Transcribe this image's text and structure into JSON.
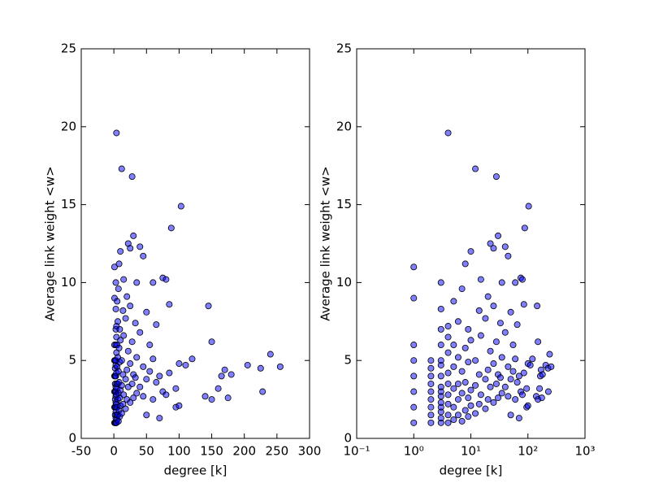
{
  "chart_data": [
    {
      "type": "scatter",
      "xlabel": "degree [k]",
      "ylabel": "Average link weight <w>",
      "color": "#0000ff",
      "xscale": "linear",
      "xlim": [
        -50,
        300
      ],
      "xticks": [
        -50,
        0,
        50,
        100,
        150,
        200,
        250,
        300
      ],
      "ylim": [
        0,
        25
      ],
      "yticks": [
        0,
        5,
        10,
        15,
        20,
        25
      ],
      "x": [
        1,
        1,
        1,
        1,
        1,
        1,
        1,
        1,
        2,
        2,
        2,
        2,
        2,
        2,
        2,
        2,
        2,
        3,
        3,
        3,
        3,
        3,
        3,
        3,
        3,
        3,
        3,
        3,
        3,
        3,
        3,
        3,
        4,
        4,
        4,
        4,
        4,
        4,
        4,
        4,
        4,
        4,
        5,
        5,
        5,
        5,
        5,
        5,
        6,
        6,
        6,
        6,
        6,
        7,
        7,
        7,
        7,
        8,
        8,
        8,
        8,
        9,
        9,
        9,
        9,
        10,
        10,
        10,
        10,
        12,
        12,
        12,
        12,
        14,
        14,
        14,
        15,
        15,
        15,
        18,
        18,
        18,
        20,
        20,
        20,
        22,
        22,
        22,
        25,
        25,
        25,
        25,
        28,
        28,
        28,
        30,
        30,
        30,
        33,
        33,
        35,
        35,
        35,
        40,
        40,
        40,
        45,
        45,
        45,
        50,
        50,
        50,
        55,
        55,
        60,
        60,
        60,
        65,
        65,
        70,
        70,
        75,
        75,
        80,
        80,
        85,
        85,
        88,
        95,
        95,
        100,
        100,
        103,
        110,
        120,
        140,
        145,
        150,
        150,
        160,
        165,
        170,
        175,
        180,
        205,
        225,
        228,
        240,
        255
      ],
      "values": [
        1,
        2,
        3,
        4,
        5,
        6,
        9,
        11,
        1,
        1.5,
        2,
        2.5,
        3,
        3.5,
        4,
        4.5,
        5,
        1,
        1.3,
        1.7,
        2,
        2.3,
        2.7,
        3,
        3.3,
        4,
        4.7,
        5,
        6,
        7,
        8.3,
        10,
        1,
        1.5,
        2.2,
        2.8,
        3.5,
        4.2,
        5.5,
        6.5,
        7.2,
        19.6,
        1.2,
        2,
        3.2,
        4.6,
        6,
        8.8,
        1.5,
        2.5,
        3.5,
        5.2,
        7.5,
        1.1,
        2.9,
        4.3,
        9.6,
        1.8,
        3.6,
        5.8,
        11.2,
        1.4,
        2.6,
        4.9,
        7,
        2.1,
        3.1,
        6.3,
        12,
        1.6,
        3.4,
        5,
        17.3,
        2.2,
        4.1,
        8.2,
        2.8,
        6.6,
        10.2,
        1.9,
        3.8,
        7.7,
        2.5,
        4.4,
        9.1,
        3.3,
        5.6,
        12.5,
        2.3,
        4.8,
        8.5,
        12.2,
        3.5,
        6.2,
        16.8,
        2.6,
        4.1,
        13,
        3.9,
        7.4,
        2.9,
        5.2,
        10,
        3.3,
        6.8,
        12.3,
        2.7,
        4.6,
        11.7,
        1.5,
        3.8,
        8.1,
        4.3,
        6,
        2.5,
        5.1,
        10,
        3.6,
        7.3,
        1.3,
        4,
        3,
        10.3,
        2.8,
        10.2,
        4.2,
        8.6,
        13.5,
        2,
        3.2,
        2.1,
        4.8,
        14.9,
        4.7,
        5.1,
        2.7,
        8.5,
        2.5,
        6.2,
        3.2,
        4,
        4.4,
        2.6,
        4.1,
        4.7,
        4.5,
        3,
        5.4,
        4.6
      ]
    },
    {
      "type": "scatter",
      "xlabel": "degree [k]",
      "ylabel": "Average link weight <w>",
      "color": "#0000ff",
      "xscale": "log",
      "xlim": [
        0.1,
        1000
      ],
      "xticks": [
        {
          "value": 0.1,
          "label": "10⁻¹"
        },
        {
          "value": 1,
          "label": "10⁰"
        },
        {
          "value": 10,
          "label": "10¹"
        },
        {
          "value": 100,
          "label": "10²"
        },
        {
          "value": 1000,
          "label": "10³"
        }
      ],
      "ylim": [
        0,
        25
      ],
      "yticks": [
        0,
        5,
        10,
        15,
        20,
        25
      ],
      "x": [
        1,
        1,
        1,
        1,
        1,
        1,
        1,
        1,
        2,
        2,
        2,
        2,
        2,
        2,
        2,
        2,
        2,
        3,
        3,
        3,
        3,
        3,
        3,
        3,
        3,
        3,
        3,
        3,
        3,
        3,
        3,
        3,
        4,
        4,
        4,
        4,
        4,
        4,
        4,
        4,
        4,
        4,
        5,
        5,
        5,
        5,
        5,
        5,
        6,
        6,
        6,
        6,
        6,
        7,
        7,
        7,
        7,
        8,
        8,
        8,
        8,
        9,
        9,
        9,
        9,
        10,
        10,
        10,
        10,
        12,
        12,
        12,
        12,
        14,
        14,
        14,
        15,
        15,
        15,
        18,
        18,
        18,
        20,
        20,
        20,
        22,
        22,
        22,
        25,
        25,
        25,
        25,
        28,
        28,
        28,
        30,
        30,
        30,
        33,
        33,
        35,
        35,
        35,
        40,
        40,
        40,
        45,
        45,
        45,
        50,
        50,
        50,
        55,
        55,
        60,
        60,
        60,
        65,
        65,
        70,
        70,
        75,
        75,
        80,
        80,
        85,
        85,
        88,
        95,
        95,
        100,
        100,
        103,
        110,
        120,
        140,
        145,
        150,
        150,
        160,
        165,
        170,
        175,
        180,
        205,
        225,
        228,
        240,
        255
      ],
      "values": [
        1,
        2,
        3,
        4,
        5,
        6,
        9,
        11,
        1,
        1.5,
        2,
        2.5,
        3,
        3.5,
        4,
        4.5,
        5,
        1,
        1.3,
        1.7,
        2,
        2.3,
        2.7,
        3,
        3.3,
        4,
        4.7,
        5,
        6,
        7,
        8.3,
        10,
        1,
        1.5,
        2.2,
        2.8,
        3.5,
        4.2,
        5.5,
        6.5,
        7.2,
        19.6,
        1.2,
        2,
        3.2,
        4.6,
        6,
        8.8,
        1.5,
        2.5,
        3.5,
        5.2,
        7.5,
        1.1,
        2.9,
        4.3,
        9.6,
        1.8,
        3.6,
        5.8,
        11.2,
        1.4,
        2.6,
        4.9,
        7,
        2.1,
        3.1,
        6.3,
        12,
        1.6,
        3.4,
        5,
        17.3,
        2.2,
        4.1,
        8.2,
        2.8,
        6.6,
        10.2,
        1.9,
        3.8,
        7.7,
        2.5,
        4.4,
        9.1,
        3.3,
        5.6,
        12.5,
        2.3,
        4.8,
        8.5,
        12.2,
        3.5,
        6.2,
        16.8,
        2.6,
        4.1,
        13,
        3.9,
        7.4,
        2.9,
        5.2,
        10,
        3.3,
        6.8,
        12.3,
        2.7,
        4.6,
        11.7,
        1.5,
        3.8,
        8.1,
        4.3,
        6,
        2.5,
        5.1,
        10,
        3.6,
        7.3,
        1.3,
        4,
        3,
        10.3,
        2.8,
        10.2,
        4.2,
        8.6,
        13.5,
        2,
        3.2,
        2.1,
        4.8,
        14.9,
        4.7,
        5.1,
        2.7,
        8.5,
        2.5,
        6.2,
        3.2,
        4,
        4.4,
        2.6,
        4.1,
        4.7,
        4.5,
        3,
        5.4,
        4.6
      ]
    }
  ]
}
